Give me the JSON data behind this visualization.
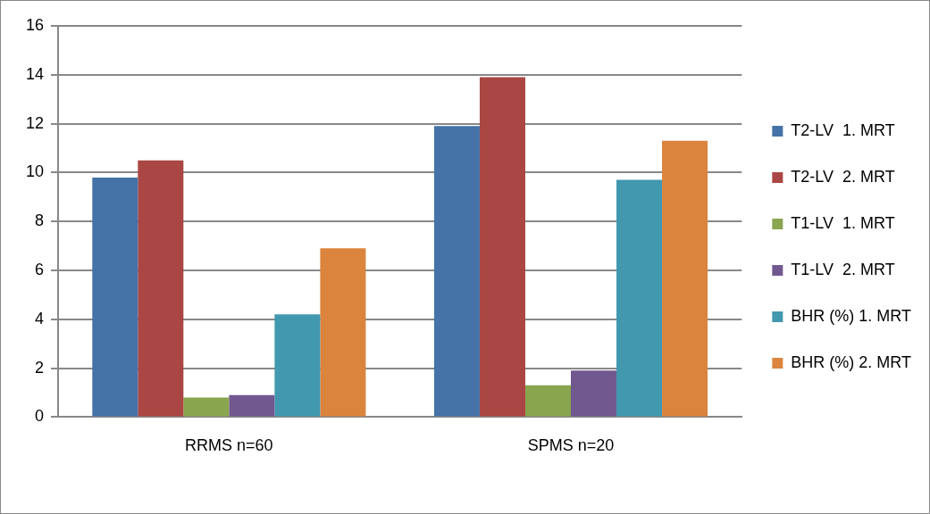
{
  "chart_data": {
    "type": "bar",
    "categories": [
      "RRMS n=60",
      "SPMS n=20"
    ],
    "series": [
      {
        "name": "T2-LV  1. MRT",
        "color": "#4572a7",
        "values": [
          9.8,
          11.9
        ]
      },
      {
        "name": "T2-LV  2. MRT",
        "color": "#aa4643",
        "values": [
          10.5,
          13.9
        ]
      },
      {
        "name": "T1-LV  1. MRT",
        "color": "#89a54e",
        "values": [
          0.8,
          1.3
        ]
      },
      {
        "name": "T1-LV  2. MRT",
        "color": "#71588f",
        "values": [
          0.9,
          1.9
        ]
      },
      {
        "name": "BHR (%) 1. MRT",
        "color": "#4198af",
        "values": [
          4.2,
          9.7
        ]
      },
      {
        "name": "BHR (%) 2. MRT",
        "color": "#db843d",
        "values": [
          6.9,
          11.3
        ]
      }
    ],
    "ylim": [
      0,
      16
    ],
    "yticks": [
      0,
      2,
      4,
      6,
      8,
      10,
      12,
      14,
      16
    ],
    "grid": "y",
    "legend": "right"
  }
}
